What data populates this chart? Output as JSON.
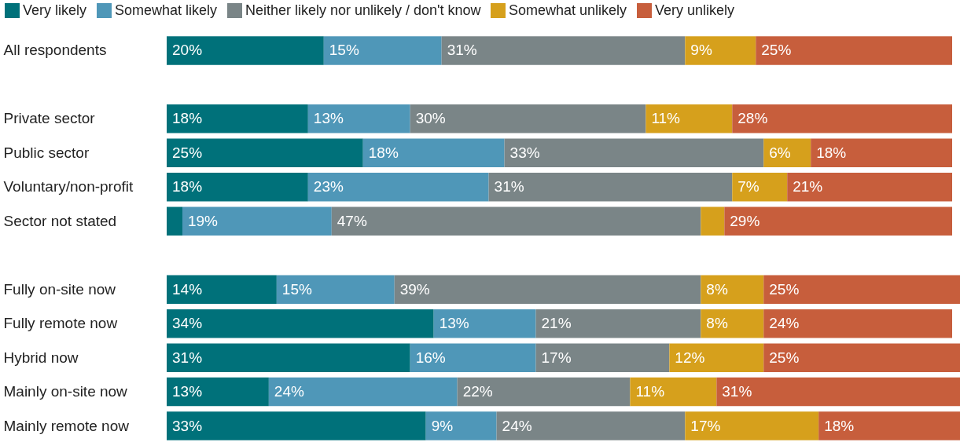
{
  "chart_data": {
    "type": "bar",
    "orientation": "horizontal",
    "stacked": true,
    "legend": "top",
    "tick_labels": "y",
    "xlim": [
      0,
      101
    ],
    "categories": [
      "All respondents",
      null,
      "Private sector",
      "Public sector",
      "Voluntary/non-profit",
      "Sector not stated",
      null,
      "Fully on-site now",
      "Fully remote now",
      "Hybrid now",
      "Mainly on-site now",
      "Mainly remote now"
    ],
    "series": [
      {
        "name": "Very likely",
        "color": "#00717a",
        "values": [
          20,
          null,
          18,
          25,
          18,
          2,
          null,
          14,
          34,
          31,
          13,
          33
        ],
        "value_labels": [
          "20%",
          null,
          "18%",
          "25%",
          "18%",
          null,
          null,
          "14%",
          "34%",
          "31%",
          "13%",
          "33%"
        ]
      },
      {
        "name": "Somewhat likely",
        "color": "#4f97b8",
        "values": [
          15,
          null,
          13,
          18,
          23,
          19,
          null,
          15,
          13,
          16,
          24,
          9
        ],
        "value_labels": [
          "15%",
          null,
          "13%",
          "18%",
          "23%",
          "19%",
          null,
          "15%",
          "13%",
          "16%",
          "24%",
          "9%"
        ]
      },
      {
        "name": "Neither likely nor unlikely / don't know",
        "color": "#7a8587",
        "values": [
          31,
          null,
          30,
          33,
          31,
          47,
          null,
          39,
          21,
          17,
          22,
          24
        ],
        "value_labels": [
          "31%",
          null,
          "30%",
          "33%",
          "31%",
          "47%",
          null,
          "39%",
          "21%",
          "17%",
          "22%",
          "24%"
        ]
      },
      {
        "name": "Somewhat unlikely",
        "color": "#d6a01c",
        "values": [
          9,
          null,
          11,
          6,
          7,
          3,
          null,
          8,
          8,
          12,
          11,
          17
        ],
        "value_labels": [
          "9%",
          null,
          "11%",
          "6%",
          "7%",
          null,
          null,
          "8%",
          "8%",
          "12%",
          "11%",
          "17%"
        ]
      },
      {
        "name": "Very unlikely",
        "color": "#c75e3c",
        "values": [
          25,
          null,
          28,
          18,
          21,
          29,
          null,
          25,
          24,
          25,
          31,
          18
        ],
        "value_labels": [
          "25%",
          null,
          "28%",
          "18%",
          "21%",
          "29%",
          null,
          "25%",
          "24%",
          "25%",
          "31%",
          "18%"
        ]
      }
    ]
  }
}
